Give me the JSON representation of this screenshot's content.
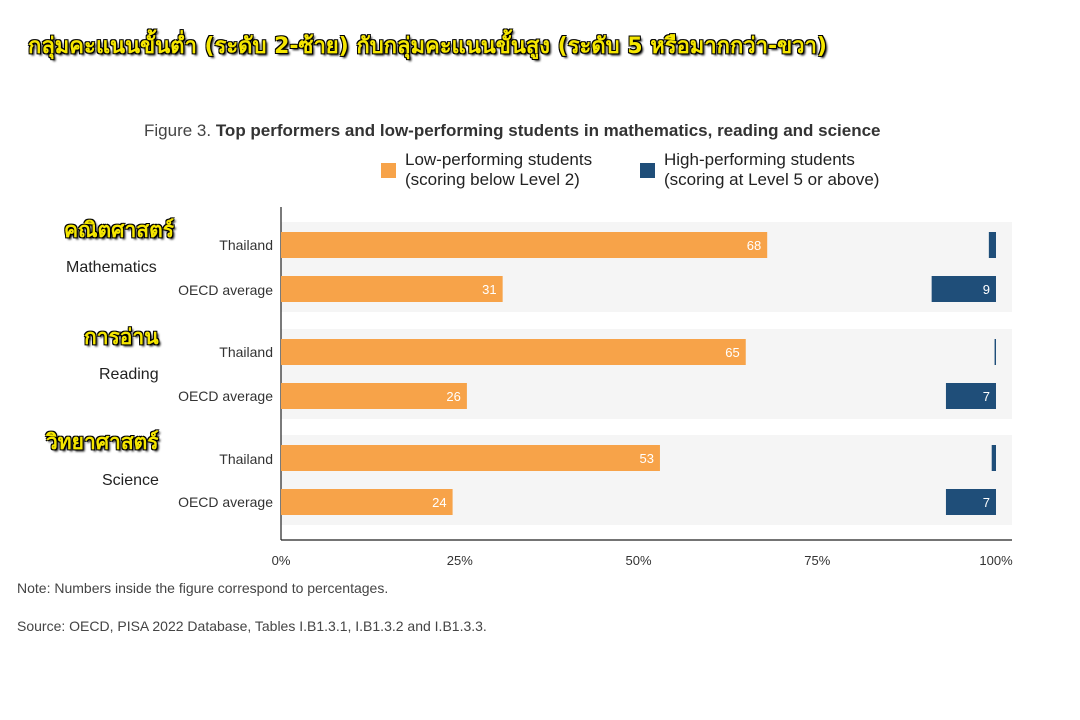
{
  "banner": "กลุ่มคะแนนขั้นต่ำ (ระดับ 2-ซ้าย) กับกลุ่มคะแนนขั้นสูง (ระดับ 5 หรือมากกว่า-ขวา)",
  "figure": {
    "prefix": "Figure 3. ",
    "title": "Top performers and low-performing students in mathematics, reading and science"
  },
  "colors": {
    "low": "#f7a349",
    "high": "#1f4e79",
    "band": "#f5f5f5",
    "axis": "#222222",
    "label_text": "#ffffff"
  },
  "legend": {
    "low_line1": "Low-performing students",
    "low_line2": "(scoring below Level 2)",
    "high_line1": "High-performing students",
    "high_line2": "(scoring at Level 5 or above)"
  },
  "subjects": [
    {
      "thai": "คณิตศาสตร์",
      "english": "Mathematics"
    },
    {
      "thai": "การอ่าน",
      "english": "Reading"
    },
    {
      "thai": "วิทยาศาสตร์",
      "english": "Science"
    }
  ],
  "notes": {
    "note": "Note: Numbers inside the figure correspond to percentages.",
    "source": "Source: OECD, PISA 2022 Database, Tables I.B1.3.1, I.B1.3.2 and I.B1.3.3."
  },
  "chart_data": {
    "type": "bar",
    "orientation": "horizontal",
    "title": "Top performers and low-performing students in mathematics, reading and science",
    "groups": [
      "Mathematics",
      "Reading",
      "Science"
    ],
    "categories": [
      "Thailand",
      "OECD average"
    ],
    "series": [
      {
        "name": "Low-performing students (scoring below Level 2)",
        "anchor": "left",
        "values": [
          [
            68,
            31
          ],
          [
            65,
            26
          ],
          [
            53,
            24
          ]
        ],
        "labels": [
          [
            "68",
            "31"
          ],
          [
            "65",
            "26"
          ],
          [
            "53",
            "24"
          ]
        ]
      },
      {
        "name": "High-performing students (scoring at Level 5 or above)",
        "anchor": "right",
        "values": [
          [
            1,
            9
          ],
          [
            0.2,
            7
          ],
          [
            0.6,
            7
          ]
        ],
        "labels": [
          [
            "",
            "9"
          ],
          [
            "",
            "7"
          ],
          [
            "",
            "7"
          ]
        ]
      }
    ],
    "xlim": [
      0,
      100
    ],
    "xticks": [
      "0%",
      "25%",
      "50%",
      "75%",
      "100%"
    ],
    "legend_position": "top"
  }
}
